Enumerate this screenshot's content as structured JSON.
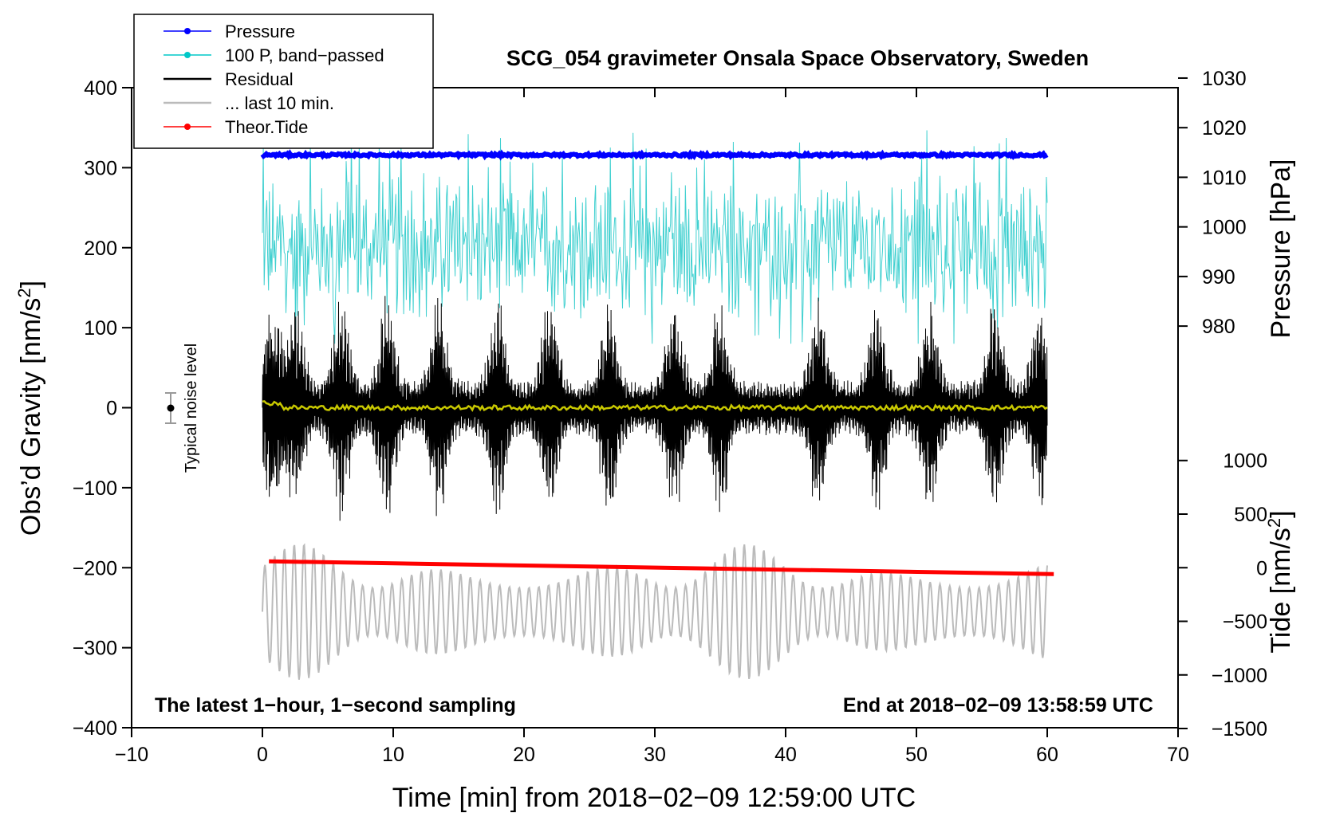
{
  "chart_data": {
    "type": "line",
    "title": "SCG_054 gravimeter Onsala Space Observatory, Sweden",
    "xlabel": "Time [min] from 2018−02−09 12:59:00 UTC",
    "ylabel_left": "Obs’d Gravity [nm/s²]",
    "ylabel_right_top": "Pressure [hPa]",
    "ylabel_right_bottom": "Tide [nm/s²]",
    "xlim": [
      -10,
      70
    ],
    "ylim": [
      -400,
      400
    ],
    "x_ticks": [
      -10,
      0,
      10,
      20,
      30,
      40,
      50,
      60,
      70
    ],
    "x_tick_labels": [
      "−10",
      "0",
      "10",
      "20",
      "30",
      "40",
      "50",
      "60",
      "70"
    ],
    "y_ticks": [
      -400,
      -300,
      -200,
      -100,
      0,
      100,
      200,
      300,
      400
    ],
    "y_tick_labels": [
      "−400",
      "−300",
      "−200",
      "−100",
      "0",
      "100",
      "200",
      "300",
      "400"
    ],
    "pressure_axis": {
      "ticks": [
        980,
        990,
        1000,
        1010,
        1020,
        1030
      ],
      "tick_labels": [
        "980",
        "990",
        "1000",
        "1010",
        "1020",
        "1030"
      ],
      "gravity_equiv_of_980": 102,
      "gravity_units_per_10hpa": 62
    },
    "tide_axis": {
      "ticks": [
        -1500,
        -1000,
        -500,
        0,
        500,
        1000
      ],
      "tick_labels": [
        "−1500",
        "−1000",
        "−500",
        "0",
        "500",
        "1000"
      ],
      "gravity_equiv_of_0": -200,
      "gravity_units_per_500": 67
    },
    "legend": [
      {
        "label": "Pressure",
        "color": "#0000ff",
        "marker": true
      },
      {
        "label": "100 P, band−passed",
        "color": "#00c8c8",
        "marker": true
      },
      {
        "label": "Residual",
        "color": "#000000",
        "marker": false
      },
      {
        "label": "... last 10 min.",
        "color": "#bbbbbb",
        "marker": false
      },
      {
        "label": "Theor.Tide",
        "color": "#ff0000",
        "marker": true
      }
    ],
    "series": [
      {
        "name": "Pressure",
        "color": "#0000ff",
        "unit": "hPa",
        "x_start": 0,
        "x_end": 60,
        "level": 1014.5
      },
      {
        "name": "100 P, band-passed",
        "color": "#40d0d0",
        "unit": "nm/s²",
        "x_start": 0,
        "x_end": 60,
        "center": 200,
        "low": 80,
        "high": 360
      },
      {
        "name": "Residual",
        "color": "#000000",
        "unit": "nm/s²",
        "x_start": 0,
        "x_end": 60,
        "center": 0,
        "low": -160,
        "high": 160,
        "bursts_min": [
          0.7,
          2.5,
          6.0,
          9.5,
          13.5,
          18.0,
          22.0,
          26.5,
          31.5,
          35.0,
          42.5,
          47.0,
          51.0,
          56.0,
          59.5
        ]
      },
      {
        "name": "Residual mean",
        "color": "#c8c800",
        "unit": "nm/s²",
        "x_start": 0,
        "x_end": 60,
        "level": 0
      },
      {
        "name": "... last 10 min.",
        "color": "#bbbbbb",
        "unit": "nm/s²",
        "x_start": 0,
        "x_end": 60,
        "center": -255,
        "low": -345,
        "high": -150
      },
      {
        "name": "Theor.Tide",
        "color": "#ff0000",
        "unit": "nm/s²",
        "x": [
          0.5,
          60.5
        ],
        "y": [
          -192,
          -208
        ]
      }
    ],
    "noise_marker": {
      "label": "Typical noise level",
      "x": -7,
      "y": 0,
      "err": 20
    },
    "annotation_left": "The latest 1−hour, 1−second sampling",
    "annotation_right": "End at 2018−02−09 13:58:59 UTC"
  }
}
